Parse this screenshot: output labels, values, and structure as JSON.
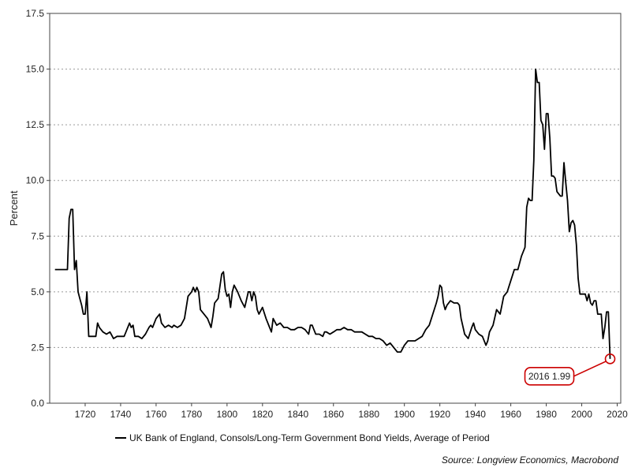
{
  "chart_data": {
    "type": "line",
    "ylabel": "Percent",
    "xlabel": "",
    "xlim": [
      1700,
      2022
    ],
    "ylim": [
      0,
      17.5
    ],
    "x_ticks": [
      "1720",
      "1740",
      "1760",
      "1780",
      "1800",
      "1820",
      "1840",
      "1860",
      "1880",
      "1900",
      "1920",
      "1940",
      "1960",
      "1980",
      "2000",
      "2020"
    ],
    "y_ticks": [
      "0.0",
      "2.5",
      "5.0",
      "7.5",
      "10.0",
      "12.5",
      "15.0",
      "17.5"
    ],
    "grid": "horizontal dotted",
    "legend_position": "bottom",
    "series": [
      {
        "name": "UK Bank of England, Consols/Long-Term Government Bond Yields, Average of Period",
        "color": "#000000",
        "points": [
          [
            1703,
            6.0
          ],
          [
            1710,
            6.0
          ],
          [
            1711,
            8.3
          ],
          [
            1712,
            8.7
          ],
          [
            1713,
            8.7
          ],
          [
            1714,
            6.0
          ],
          [
            1715,
            6.4
          ],
          [
            1716,
            5.0
          ],
          [
            1717,
            4.7
          ],
          [
            1718,
            4.4
          ],
          [
            1719,
            4.0
          ],
          [
            1720,
            4.0
          ],
          [
            1721,
            5.0
          ],
          [
            1722,
            3.0
          ],
          [
            1724,
            3.0
          ],
          [
            1726,
            3.0
          ],
          [
            1727,
            3.6
          ],
          [
            1728,
            3.4
          ],
          [
            1730,
            3.2
          ],
          [
            1732,
            3.1
          ],
          [
            1734,
            3.2
          ],
          [
            1736,
            2.9
          ],
          [
            1738,
            3.0
          ],
          [
            1740,
            3.0
          ],
          [
            1742,
            3.0
          ],
          [
            1743,
            3.2
          ],
          [
            1745,
            3.6
          ],
          [
            1746,
            3.4
          ],
          [
            1747,
            3.5
          ],
          [
            1748,
            3.0
          ],
          [
            1750,
            3.0
          ],
          [
            1752,
            2.9
          ],
          [
            1754,
            3.1
          ],
          [
            1756,
            3.4
          ],
          [
            1757,
            3.5
          ],
          [
            1758,
            3.4
          ],
          [
            1760,
            3.8
          ],
          [
            1762,
            4.0
          ],
          [
            1763,
            3.6
          ],
          [
            1765,
            3.4
          ],
          [
            1767,
            3.5
          ],
          [
            1769,
            3.4
          ],
          [
            1770,
            3.5
          ],
          [
            1772,
            3.4
          ],
          [
            1774,
            3.5
          ],
          [
            1776,
            3.8
          ],
          [
            1778,
            4.8
          ],
          [
            1780,
            5.0
          ],
          [
            1781,
            5.2
          ],
          [
            1782,
            5.0
          ],
          [
            1783,
            5.2
          ],
          [
            1784,
            5.0
          ],
          [
            1785,
            4.2
          ],
          [
            1787,
            4.0
          ],
          [
            1789,
            3.8
          ],
          [
            1790,
            3.6
          ],
          [
            1791,
            3.4
          ],
          [
            1792,
            3.9
          ],
          [
            1793,
            4.5
          ],
          [
            1795,
            4.7
          ],
          [
            1797,
            5.8
          ],
          [
            1798,
            5.9
          ],
          [
            1799,
            5.1
          ],
          [
            1800,
            4.8
          ],
          [
            1801,
            4.9
          ],
          [
            1802,
            4.3
          ],
          [
            1803,
            5.0
          ],
          [
            1804,
            5.3
          ],
          [
            1806,
            5.0
          ],
          [
            1808,
            4.6
          ],
          [
            1810,
            4.3
          ],
          [
            1812,
            5.0
          ],
          [
            1813,
            5.0
          ],
          [
            1814,
            4.6
          ],
          [
            1815,
            5.0
          ],
          [
            1816,
            4.8
          ],
          [
            1817,
            4.2
          ],
          [
            1818,
            4.0
          ],
          [
            1820,
            4.3
          ],
          [
            1822,
            3.8
          ],
          [
            1824,
            3.4
          ],
          [
            1825,
            3.2
          ],
          [
            1826,
            3.8
          ],
          [
            1828,
            3.5
          ],
          [
            1830,
            3.6
          ],
          [
            1832,
            3.4
          ],
          [
            1834,
            3.4
          ],
          [
            1836,
            3.3
          ],
          [
            1838,
            3.3
          ],
          [
            1840,
            3.4
          ],
          [
            1842,
            3.4
          ],
          [
            1844,
            3.3
          ],
          [
            1846,
            3.1
          ],
          [
            1847,
            3.5
          ],
          [
            1848,
            3.5
          ],
          [
            1849,
            3.3
          ],
          [
            1850,
            3.1
          ],
          [
            1852,
            3.1
          ],
          [
            1854,
            3.0
          ],
          [
            1855,
            3.2
          ],
          [
            1856,
            3.2
          ],
          [
            1858,
            3.1
          ],
          [
            1860,
            3.2
          ],
          [
            1862,
            3.3
          ],
          [
            1864,
            3.3
          ],
          [
            1866,
            3.4
          ],
          [
            1868,
            3.3
          ],
          [
            1870,
            3.3
          ],
          [
            1872,
            3.2
          ],
          [
            1874,
            3.2
          ],
          [
            1876,
            3.2
          ],
          [
            1878,
            3.1
          ],
          [
            1880,
            3.0
          ],
          [
            1882,
            3.0
          ],
          [
            1884,
            2.9
          ],
          [
            1886,
            2.9
          ],
          [
            1888,
            2.8
          ],
          [
            1890,
            2.6
          ],
          [
            1892,
            2.7
          ],
          [
            1894,
            2.5
          ],
          [
            1896,
            2.3
          ],
          [
            1897,
            2.3
          ],
          [
            1898,
            2.3
          ],
          [
            1900,
            2.6
          ],
          [
            1902,
            2.8
          ],
          [
            1904,
            2.8
          ],
          [
            1906,
            2.8
          ],
          [
            1908,
            2.9
          ],
          [
            1910,
            3.0
          ],
          [
            1912,
            3.3
          ],
          [
            1914,
            3.5
          ],
          [
            1916,
            4.0
          ],
          [
            1918,
            4.5
          ],
          [
            1919,
            4.8
          ],
          [
            1920,
            5.3
          ],
          [
            1921,
            5.2
          ],
          [
            1922,
            4.5
          ],
          [
            1923,
            4.2
          ],
          [
            1924,
            4.4
          ],
          [
            1926,
            4.6
          ],
          [
            1928,
            4.5
          ],
          [
            1930,
            4.5
          ],
          [
            1931,
            4.4
          ],
          [
            1932,
            3.8
          ],
          [
            1934,
            3.1
          ],
          [
            1936,
            2.9
          ],
          [
            1938,
            3.4
          ],
          [
            1939,
            3.6
          ],
          [
            1940,
            3.3
          ],
          [
            1942,
            3.1
          ],
          [
            1944,
            3.0
          ],
          [
            1946,
            2.6
          ],
          [
            1947,
            2.8
          ],
          [
            1948,
            3.2
          ],
          [
            1950,
            3.5
          ],
          [
            1952,
            4.2
          ],
          [
            1954,
            4.0
          ],
          [
            1956,
            4.8
          ],
          [
            1958,
            5.0
          ],
          [
            1960,
            5.5
          ],
          [
            1962,
            6.0
          ],
          [
            1964,
            6.0
          ],
          [
            1966,
            6.6
          ],
          [
            1968,
            7.0
          ],
          [
            1969,
            8.8
          ],
          [
            1970,
            9.2
          ],
          [
            1971,
            9.1
          ],
          [
            1972,
            9.1
          ],
          [
            1973,
            10.9
          ],
          [
            1974,
            15.0
          ],
          [
            1975,
            14.4
          ],
          [
            1976,
            14.4
          ],
          [
            1977,
            12.7
          ],
          [
            1978,
            12.5
          ],
          [
            1979,
            11.4
          ],
          [
            1980,
            13.0
          ],
          [
            1981,
            13.0
          ],
          [
            1982,
            11.9
          ],
          [
            1983,
            10.2
          ],
          [
            1984,
            10.2
          ],
          [
            1985,
            10.1
          ],
          [
            1986,
            9.5
          ],
          [
            1987,
            9.4
          ],
          [
            1988,
            9.3
          ],
          [
            1989,
            9.3
          ],
          [
            1990,
            10.8
          ],
          [
            1991,
            9.9
          ],
          [
            1992,
            9.1
          ],
          [
            1993,
            7.7
          ],
          [
            1994,
            8.1
          ],
          [
            1995,
            8.2
          ],
          [
            1996,
            8.0
          ],
          [
            1997,
            7.1
          ],
          [
            1998,
            5.6
          ],
          [
            1999,
            4.9
          ],
          [
            2000,
            4.9
          ],
          [
            2001,
            4.9
          ],
          [
            2002,
            4.9
          ],
          [
            2003,
            4.6
          ],
          [
            2004,
            4.9
          ],
          [
            2005,
            4.5
          ],
          [
            2006,
            4.4
          ],
          [
            2007,
            4.6
          ],
          [
            2008,
            4.6
          ],
          [
            2009,
            4.0
          ],
          [
            2010,
            4.0
          ],
          [
            2011,
            4.0
          ],
          [
            2012,
            2.9
          ],
          [
            2013,
            3.4
          ],
          [
            2014,
            4.1
          ],
          [
            2015,
            4.1
          ],
          [
            2016,
            1.99
          ]
        ]
      }
    ],
    "annotations": [
      {
        "label": "2016 1.99",
        "x": 2016,
        "y": 1.99,
        "color": "#cc0000"
      }
    ],
    "source": "Source: Longview Economics, Macrobond"
  }
}
